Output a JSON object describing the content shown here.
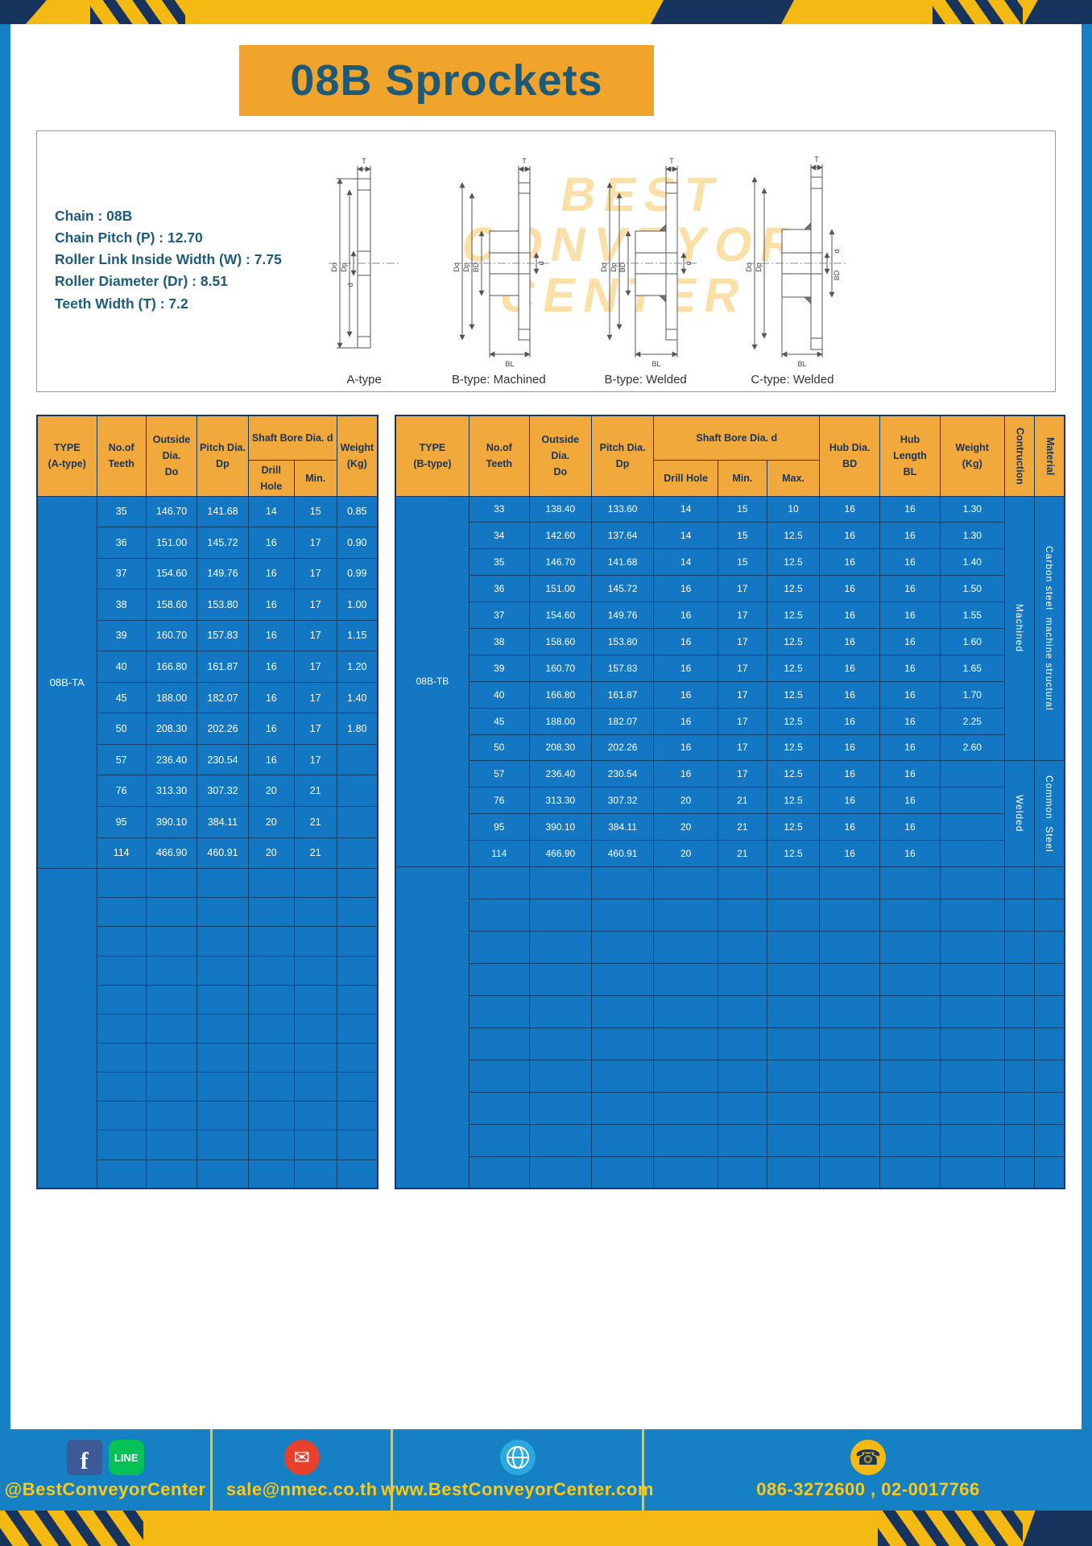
{
  "title": "08B Sprockets",
  "specs": [
    "Chain : 08B",
    "Chain Pitch (P) : 12.70",
    "Roller Link Inside Width (W) : 7.75",
    "Roller Diameter (Dr) : 8.51",
    "Teeth Width (T) : 7.2"
  ],
  "diagram": {
    "watermark": [
      "BEST",
      "CONVEYOR",
      "CENTER"
    ],
    "figure_labels": [
      "A-type",
      "B-type: Machined",
      "B-type: Welded",
      "C-type: Welded"
    ],
    "dims": {
      "T": "T",
      "Do": "Do",
      "Dp": "Dp",
      "d": "d",
      "BD": "BD",
      "BL": "BL"
    }
  },
  "table_a": {
    "type_label": "08B-TA",
    "header": {
      "type": "TYPE\n(A-type)",
      "teeth": "No.of\nTeeth",
      "outside": "Outside\nDia.\nDo",
      "pitch": "Pitch Dia.\nDp",
      "shaft_bore": "Shaft Bore Dia. d",
      "drill": "Drill Hole",
      "min": "Min.",
      "weight": "Weight\n(Kg)"
    },
    "rows": [
      [
        "35",
        "146.70",
        "141.68",
        "14",
        "15",
        "0.85"
      ],
      [
        "36",
        "151.00",
        "145.72",
        "16",
        "17",
        "0.90"
      ],
      [
        "37",
        "154.60",
        "149.76",
        "16",
        "17",
        "0.99"
      ],
      [
        "38",
        "158.60",
        "153.80",
        "16",
        "17",
        "1.00"
      ],
      [
        "39",
        "160.70",
        "157.83",
        "16",
        "17",
        "1.15"
      ],
      [
        "40",
        "166.80",
        "161.87",
        "16",
        "17",
        "1.20"
      ],
      [
        "45",
        "188.00",
        "182.07",
        "16",
        "17",
        "1.40"
      ],
      [
        "50",
        "208.30",
        "202.26",
        "16",
        "17",
        "1.80"
      ],
      [
        "57",
        "236.40",
        "230.54",
        "16",
        "17",
        ""
      ],
      [
        "76",
        "313.30",
        "307.32",
        "20",
        "21",
        ""
      ],
      [
        "95",
        "390.10",
        "384.11",
        "20",
        "21",
        ""
      ],
      [
        "114",
        "466.90",
        "460.91",
        "20",
        "21",
        ""
      ]
    ],
    "empty_row_count": 11
  },
  "table_b": {
    "type_label": "08B-TB",
    "header": {
      "type": "TYPE\n(B-type)",
      "teeth": "No.of\nTeeth",
      "outside": "Outside\nDia.\nDo",
      "pitch": "Pitch Dia.\nDp",
      "shaft_bore": "Shaft Bore Dia. d",
      "drill": "Drill Hole",
      "min": "Min.",
      "max": "Max.",
      "hub_dia": "Hub Dia.\nBD",
      "hub_len": "Hub\nLength\nBL",
      "weight": "Weight\n(Kg)",
      "construction": "Contruction",
      "material": "Material"
    },
    "rows": [
      [
        "33",
        "138.40",
        "133.60",
        "14",
        "15",
        "10",
        "16",
        "16",
        "1.30"
      ],
      [
        "34",
        "142.60",
        "137.64",
        "14",
        "15",
        "12.5",
        "16",
        "16",
        "1.30"
      ],
      [
        "35",
        "146.70",
        "141.68",
        "14",
        "15",
        "12.5",
        "16",
        "16",
        "1.40"
      ],
      [
        "36",
        "151.00",
        "145.72",
        "16",
        "17",
        "12.5",
        "16",
        "16",
        "1.50"
      ],
      [
        "37",
        "154.60",
        "149.76",
        "16",
        "17",
        "12.5",
        "16",
        "16",
        "1.55"
      ],
      [
        "38",
        "158.60",
        "153.80",
        "16",
        "17",
        "12.5",
        "16",
        "16",
        "1.60"
      ],
      [
        "39",
        "160.70",
        "157.83",
        "16",
        "17",
        "12.5",
        "16",
        "16",
        "1.65"
      ],
      [
        "40",
        "166.80",
        "161.87",
        "16",
        "17",
        "12.5",
        "16",
        "16",
        "1.70"
      ],
      [
        "45",
        "188.00",
        "182.07",
        "16",
        "17",
        "12.5",
        "16",
        "16",
        "2.25"
      ],
      [
        "50",
        "208.30",
        "202.26",
        "16",
        "17",
        "12.5",
        "16",
        "16",
        "2.60"
      ],
      [
        "57",
        "236.40",
        "230.54",
        "16",
        "17",
        "12.5",
        "16",
        "16",
        ""
      ],
      [
        "76",
        "313.30",
        "307.32",
        "20",
        "21",
        "12.5",
        "16",
        "16",
        ""
      ],
      [
        "95",
        "390.10",
        "384.11",
        "20",
        "21",
        "12.5",
        "16",
        "16",
        ""
      ],
      [
        "114",
        "466.90",
        "460.91",
        "20",
        "21",
        "12.5",
        "16",
        "16",
        ""
      ]
    ],
    "construction_spans": [
      {
        "label": "Machined",
        "start": 0,
        "span": 10
      },
      {
        "label": "Welded",
        "start": 10,
        "span": 4
      }
    ],
    "material_spans": [
      {
        "label": "Carbon steel  machine structural",
        "start": 0,
        "span": 10
      },
      {
        "label": "Common  Steel",
        "start": 10,
        "span": 4
      }
    ],
    "empty_row_count": 10
  },
  "footer": {
    "sections": [
      {
        "label": "@BestConveyorCenter"
      },
      {
        "label": "sale@nmec.co.th"
      },
      {
        "label": "www.BestConveyorCenter.com"
      },
      {
        "label": "086-3272600 , 02-0017766"
      }
    ],
    "icons": {
      "facebook": "f",
      "line": "LINE",
      "mail": "✉",
      "phone": "☎"
    }
  },
  "colors": {
    "frame_blue": "#1580c4",
    "cell_blue": "#1377c3",
    "grid_navy": "#0e3f6e",
    "header_gold": "#f2a93b",
    "banner_gold": "#f0a42c",
    "hazard_yellow": "#f5b913",
    "hazard_navy": "#17345f",
    "footer_yellow": "#ffc913",
    "title_teal": "#1b5a7a"
  }
}
